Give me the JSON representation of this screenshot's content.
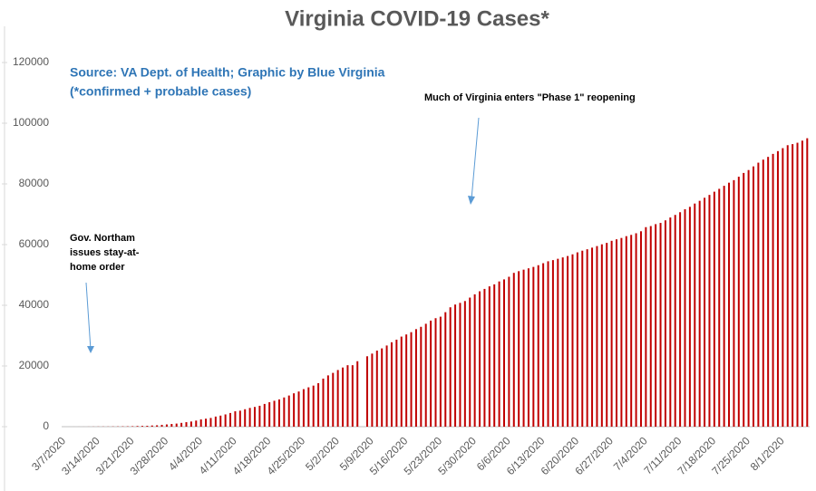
{
  "chart_data": {
    "type": "bar",
    "title": "Virginia COVID-19 Cases*",
    "source_lines": [
      "Source: VA Dept. of Health; Graphic by Blue Virginia",
      "(*confirmed + probable cases)"
    ],
    "annotations": [
      {
        "lines": [
          "Gov. Northam",
          "issues stay-at-",
          "home order"
        ]
      },
      {
        "lines": [
          "Much of Virginia enters \"Phase 1\" reopening"
        ]
      }
    ],
    "color": "#c00000",
    "ylim": [
      0,
      120000
    ],
    "yticks": [
      0,
      20000,
      40000,
      60000,
      80000,
      100000,
      120000
    ],
    "grid": false,
    "categories": [
      "3/7/2020",
      null,
      null,
      null,
      null,
      null,
      null,
      "3/14/2020",
      null,
      null,
      null,
      null,
      null,
      null,
      "3/21/2020",
      null,
      null,
      null,
      null,
      null,
      null,
      "3/28/2020",
      null,
      null,
      null,
      null,
      null,
      null,
      "4/4/2020",
      null,
      null,
      null,
      null,
      null,
      null,
      "4/11/2020",
      null,
      null,
      null,
      null,
      null,
      null,
      "4/18/2020",
      null,
      null,
      null,
      null,
      null,
      null,
      "4/25/2020",
      null,
      null,
      null,
      null,
      null,
      null,
      "5/2/2020",
      null,
      null,
      null,
      null,
      null,
      null,
      "5/9/2020",
      null,
      null,
      null,
      null,
      null,
      null,
      "5/16/2020",
      null,
      null,
      null,
      null,
      null,
      null,
      "5/23/2020",
      null,
      null,
      null,
      null,
      null,
      null,
      "5/30/2020",
      null,
      null,
      null,
      null,
      null,
      null,
      "6/6/2020",
      null,
      null,
      null,
      null,
      null,
      null,
      "6/13/2020",
      null,
      null,
      null,
      null,
      null,
      null,
      "6/20/2020",
      null,
      null,
      null,
      null,
      null,
      null,
      "6/27/2020",
      null,
      null,
      null,
      null,
      null,
      null,
      "7/4/2020",
      null,
      null,
      null,
      null,
      null,
      null,
      "7/11/2020",
      null,
      null,
      null,
      null,
      null,
      null,
      "7/18/2020",
      null,
      null,
      null,
      null,
      null,
      null,
      "7/25/2020",
      null,
      null,
      null,
      null,
      null,
      null,
      "8/1/2020",
      null,
      null,
      null,
      null,
      null
    ],
    "values": [
      2,
      3,
      5,
      9,
      9,
      17,
      30,
      41,
      45,
      45,
      67,
      77,
      99,
      114,
      152,
      219,
      254,
      290,
      391,
      460,
      604,
      739,
      890,
      1020,
      1250,
      1484,
      1706,
      2012,
      2407,
      2637,
      2878,
      3333,
      3645,
      4042,
      4509,
      5077,
      5274,
      5747,
      6182,
      6500,
      6889,
      7491,
      8053,
      8537,
      8990,
      9630,
      10266,
      10998,
      11594,
      12366,
      12970,
      13535,
      14339,
      15846,
      16901,
      17731,
      18671,
      19492,
      20256,
      20256,
      21570,
      null,
      23196,
      24081,
      25070,
      25800,
      26746,
      27813,
      28672,
      29683,
      30388,
      31140,
      32145,
      32908,
      33908,
      34950,
      35749,
      36244,
      37727,
      39342,
      40249,
      40798,
      41401,
      42533,
      43611,
      44607,
      45398,
      46239,
      46905,
      47856,
      48532,
      49397,
      50681,
      51251,
      51738,
      52177,
      52647,
      53211,
      53869,
      54506,
      54886,
      55331,
      55775,
      56238,
      56793,
      57443,
      57994,
      58465,
      58994,
      59514,
      60088,
      60570,
      61247,
      61736,
      62189,
      62787,
      63203,
      63735,
      64393,
      65748,
      66102,
      66740,
      67148,
      67988,
      68931,
      69782,
      70670,
      71642,
      72443,
      73527,
      74431,
      75433,
      76373,
      77430,
      78375,
      79371,
      80393,
      81237,
      82364,
      83609,
      84567,
      85762,
      86994,
      87993,
      88904,
      89888,
      90801,
      91782,
      92756,
      93106,
      93562,
      94251,
      95049
    ]
  }
}
